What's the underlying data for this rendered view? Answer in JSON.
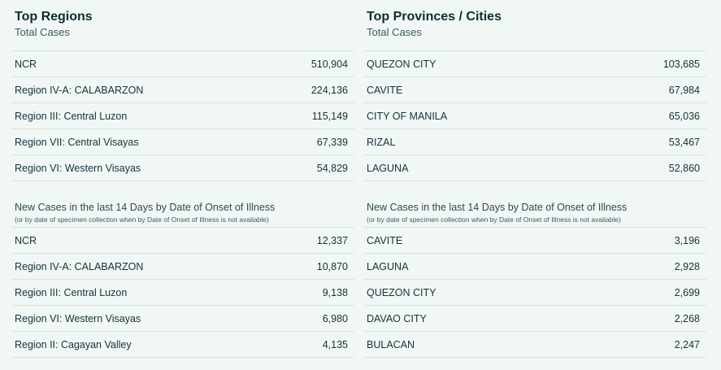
{
  "top_regions": {
    "title": "Top Regions",
    "subtitle": "Total Cases",
    "rows": [
      {
        "name": "NCR",
        "value": "510,904"
      },
      {
        "name": "Region IV-A: CALABARZON",
        "value": "224,136"
      },
      {
        "name": "Region III: Central Luzon",
        "value": "115,149"
      },
      {
        "name": "Region VII: Central Visayas",
        "value": "67,339"
      },
      {
        "name": "Region VI: Western Visayas",
        "value": "54,829"
      }
    ]
  },
  "top_provinces": {
    "title": "Top Provinces / Cities",
    "subtitle": "Total Cases",
    "rows": [
      {
        "name": "QUEZON CITY",
        "value": "103,685"
      },
      {
        "name": "CAVITE",
        "value": "67,984"
      },
      {
        "name": "CITY OF MANILA",
        "value": "65,036"
      },
      {
        "name": "RIZAL",
        "value": "53,467"
      },
      {
        "name": "LAGUNA",
        "value": "52,860"
      }
    ]
  },
  "new_regions": {
    "heading": "New Cases in the last 14 Days by Date of Onset of Illness",
    "note": "(or by date of specimen collection when by Date of Onset of Illness is not available)",
    "rows": [
      {
        "name": "NCR",
        "value": "12,337"
      },
      {
        "name": "Region IV-A: CALABARZON",
        "value": "10,870"
      },
      {
        "name": "Region III: Central Luzon",
        "value": "9,138"
      },
      {
        "name": "Region VI: Western Visayas",
        "value": "6,980"
      },
      {
        "name": "Region II: Cagayan Valley",
        "value": "4,135"
      }
    ]
  },
  "new_provinces": {
    "heading": "New Cases in the last 14 Days by Date of Onset of Illness",
    "note": "(or by date of specimen collection when by Date of Onset of Illness is not available)",
    "rows": [
      {
        "name": "CAVITE",
        "value": "3,196"
      },
      {
        "name": "LAGUNA",
        "value": "2,928"
      },
      {
        "name": "QUEZON CITY",
        "value": "2,699"
      },
      {
        "name": "DAVAO CITY",
        "value": "2,268"
      },
      {
        "name": "BULACAN",
        "value": "2,247"
      }
    ]
  }
}
